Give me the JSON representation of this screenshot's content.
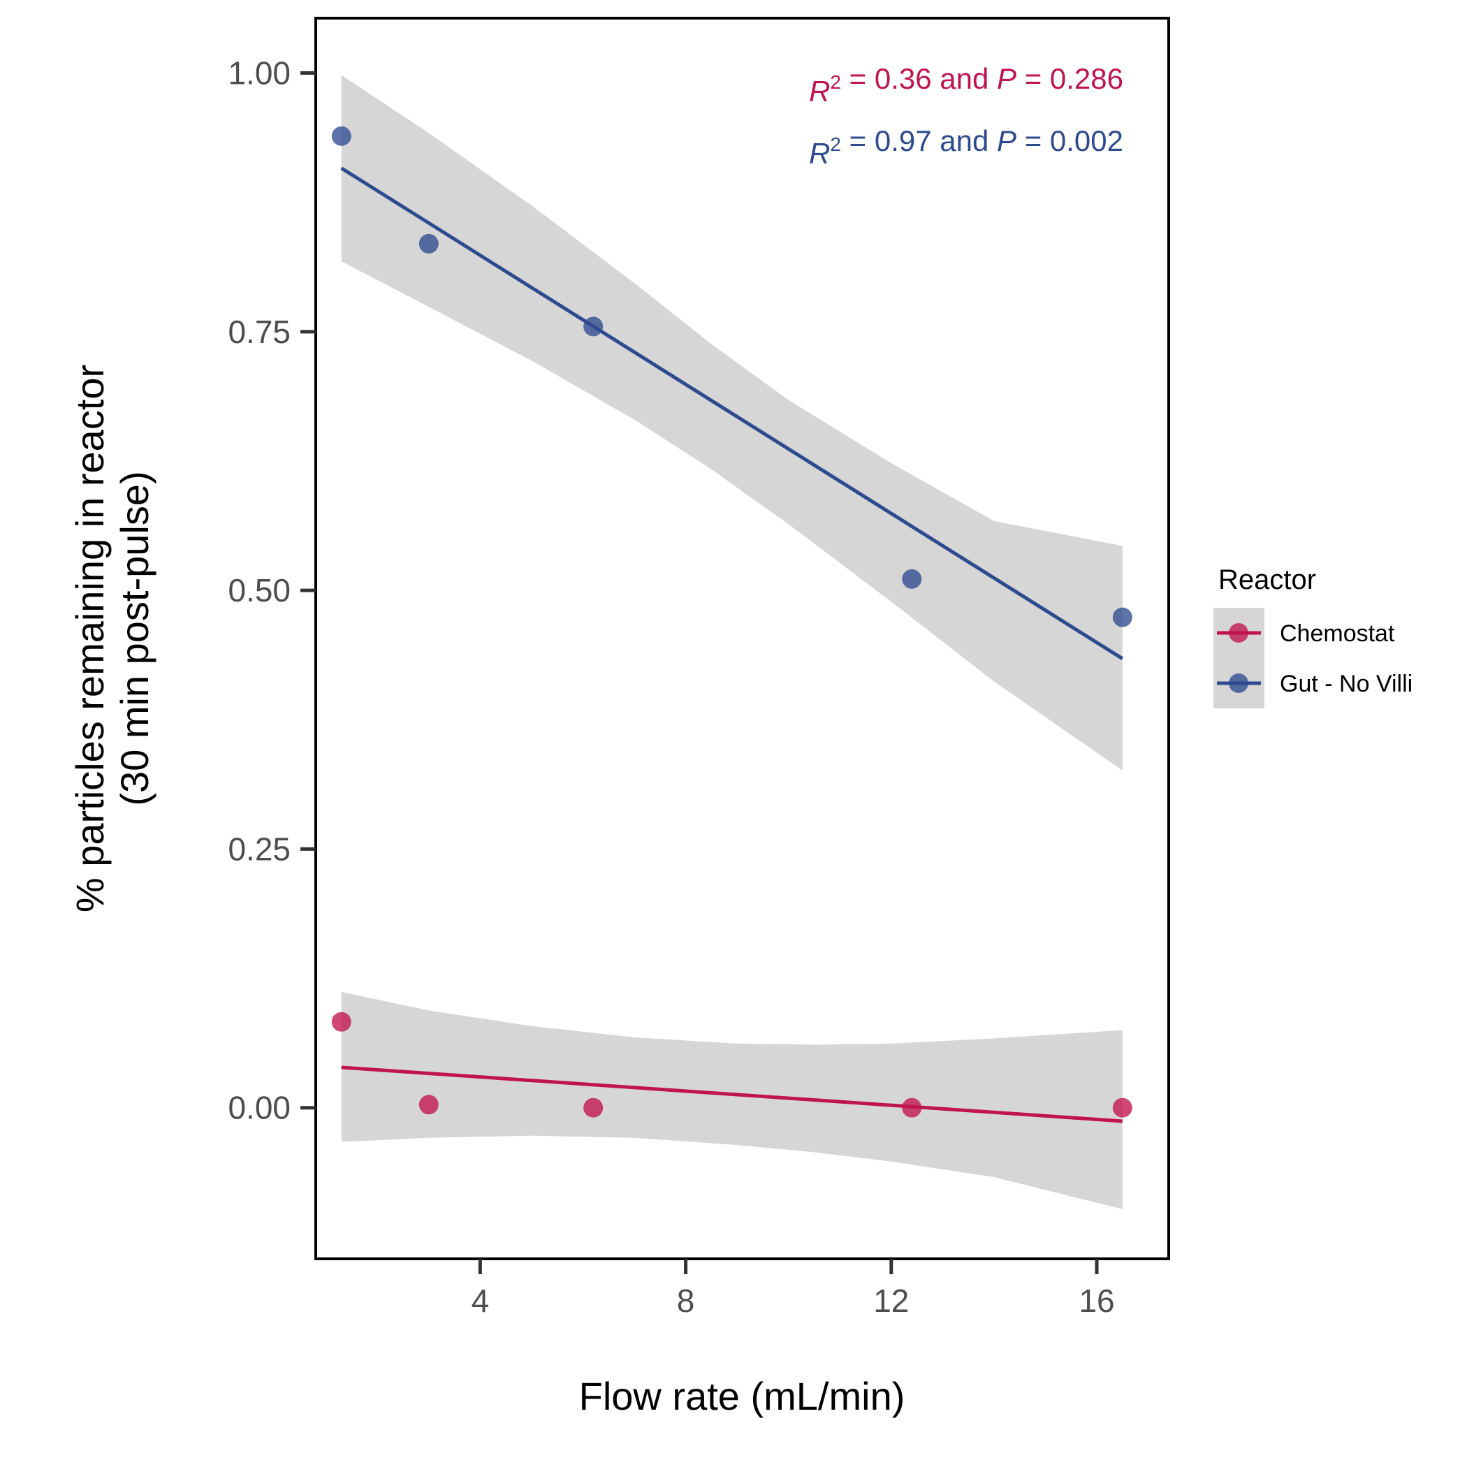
{
  "chart_data": {
    "type": "scatter",
    "xlabel": "Flow rate (mL/min)",
    "ylabel_lines": [
      "% particles remaining in reactor",
      "(30 min post-pulse)"
    ],
    "xlim": [
      0.8,
      17.4
    ],
    "ylim": [
      -0.146,
      1.053
    ],
    "x_ticks": [
      4,
      8,
      12,
      16
    ],
    "x_tick_labels": [
      "4",
      "8",
      "12",
      "16"
    ],
    "y_ticks": [
      0.0,
      0.25,
      0.5,
      0.75,
      1.0
    ],
    "y_tick_labels": [
      "0.00",
      "0.25",
      "0.50",
      "0.75",
      "1.00"
    ],
    "grid": false,
    "legend": {
      "title": "Reactor",
      "position": "right"
    },
    "annotations": [
      {
        "r2_label": "R",
        "r2_sup": "2",
        "mid": " = 0.36 and ",
        "p_label": "P",
        "tail": " = 0.286",
        "color": "#c0144c"
      },
      {
        "r2_label": "R",
        "r2_sup": "2",
        "mid": " = 0.97 and ",
        "p_label": "P",
        "tail": " = 0.002",
        "color": "#2e4a8f"
      }
    ],
    "series": [
      {
        "name": "Chemostat",
        "color": "#c0144c",
        "points": [
          {
            "x": 1.3,
            "y": 0.083
          },
          {
            "x": 3.0,
            "y": 0.003
          },
          {
            "x": 6.2,
            "y": 0.0
          },
          {
            "x": 12.4,
            "y": 0.0
          },
          {
            "x": 16.5,
            "y": 0.0
          }
        ],
        "fit": {
          "x": [
            1.3,
            16.5
          ],
          "y": [
            0.039,
            -0.013
          ]
        },
        "ci_band": {
          "x": [
            1.3,
            3.0,
            5.0,
            7.0,
            9.0,
            10.5,
            12.0,
            14.0,
            16.5
          ],
          "lower": [
            -0.033,
            -0.029,
            -0.027,
            -0.029,
            -0.036,
            -0.043,
            -0.052,
            -0.067,
            -0.098
          ],
          "upper": [
            0.112,
            0.094,
            0.079,
            0.068,
            0.062,
            0.061,
            0.062,
            0.067,
            0.075
          ]
        }
      },
      {
        "name": "Gut - No Villi",
        "color": "#2e4a8f",
        "points": [
          {
            "x": 1.3,
            "y": 0.939
          },
          {
            "x": 3.0,
            "y": 0.835
          },
          {
            "x": 6.2,
            "y": 0.755
          },
          {
            "x": 12.4,
            "y": 0.511
          },
          {
            "x": 16.5,
            "y": 0.474
          }
        ],
        "fit": {
          "x": [
            1.3,
            16.5
          ],
          "y": [
            0.908,
            0.434
          ]
        },
        "ci_band": {
          "x": [
            1.3,
            3.0,
            5.0,
            7.0,
            8.5,
            10.0,
            12.0,
            14.0,
            16.5
          ],
          "lower": [
            0.818,
            0.774,
            0.722,
            0.665,
            0.617,
            0.564,
            0.489,
            0.412,
            0.326
          ],
          "upper": [
            0.998,
            0.942,
            0.872,
            0.797,
            0.738,
            0.684,
            0.623,
            0.567,
            0.543
          ]
        }
      }
    ]
  }
}
